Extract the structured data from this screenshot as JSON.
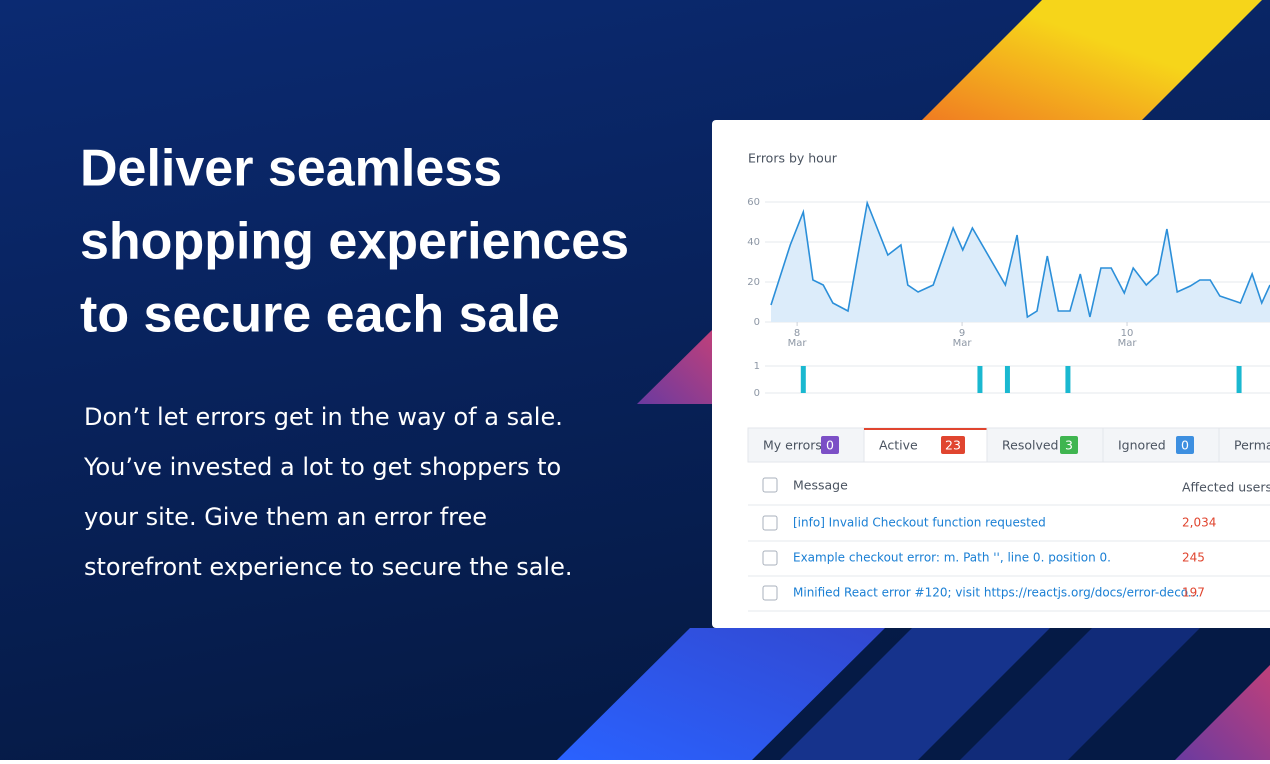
{
  "headline": [
    "Deliver seamless",
    "shopping experiences",
    "to secure each sale"
  ],
  "body": [
    "Don’t let errors get in the way of a sale.",
    "You’ve invested a lot to get shoppers to",
    "your site. Give them an error free",
    "storefront experience to secure the sale."
  ],
  "panel": {
    "title": "Errors by hour",
    "tabs": [
      {
        "label": "My errors",
        "count": 0,
        "color": "#7b4fc6"
      },
      {
        "label": "Active",
        "count": 23,
        "color": "#e0452f"
      },
      {
        "label": "Resolved",
        "count": 3,
        "color": "#3fb550"
      },
      {
        "label": "Ignored",
        "count": 0,
        "color": "#3d8fe0"
      },
      {
        "label": "Perma"
      }
    ],
    "active_tab": 1,
    "table": {
      "header": [
        "Message",
        "Affected users"
      ],
      "rows": [
        [
          "[info] Invalid Checkout function requested",
          "2,034"
        ],
        [
          "Example checkout error: m. Path '', line 0. position 0.",
          "245"
        ],
        [
          "Minified React error #120; visit https://reactjs.org/docs/error-deco...",
          "197"
        ]
      ]
    }
  },
  "chart_data": [
    {
      "type": "line",
      "color": "#2b8fd9",
      "x": [
        -3.8,
        -1,
        0.9,
        2.3,
        3.8,
        5.2,
        7.4,
        10.2,
        13.2,
        15.1,
        16.1,
        17.6,
        19.8,
        22.7,
        24.1,
        25.5,
        30.3,
        32,
        33.5,
        34.9,
        36.4,
        38,
        39.7,
        41.2,
        42.6,
        44.2,
        45.7,
        47.6,
        48.9,
        50.8,
        52.5,
        53.8,
        55.3,
        57.2,
        58.6,
        60.1,
        61.5,
        64.5,
        66.2,
        67.6,
        68.8
      ],
      "values": [
        8.5,
        38.5,
        55,
        21,
        18.5,
        9.5,
        5.5,
        59.5,
        33.5,
        38.5,
        18.5,
        15,
        18.5,
        47,
        36,
        47,
        18.5,
        43.5,
        2.5,
        5.5,
        33,
        5.5,
        5.5,
        24,
        2.5,
        27,
        27,
        14.5,
        27,
        18.5,
        24,
        46.5,
        15,
        18,
        21,
        21,
        13,
        9.5,
        24,
        9.5,
        18.5
      ],
      "xlim": [
        -3.8,
        68.8
      ],
      "xticks": [
        {
          "value": 0,
          "label": "8 Mar"
        },
        {
          "value": 24,
          "label": "9 Mar"
        },
        {
          "value": 48,
          "label": "10 Mar"
        }
      ],
      "ylim": [
        0,
        60
      ],
      "yticks": [
        0,
        20,
        40,
        60
      ],
      "grid": true
    },
    {
      "type": "bar",
      "color": "#1ab8d0",
      "x": [
        0.9,
        26.6,
        30.6,
        39.4,
        64.3
      ],
      "values": [
        1,
        1,
        1,
        1,
        1
      ],
      "xlim": [
        -3.8,
        68.8
      ],
      "ylim": [
        0,
        1
      ],
      "yticks": [
        0,
        1
      ],
      "grid": true
    }
  ]
}
